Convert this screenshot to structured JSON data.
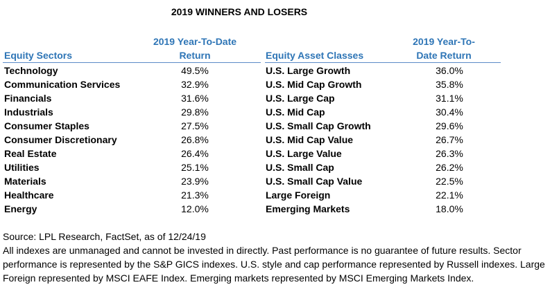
{
  "title": "2019 WINNERS AND LOSERS",
  "sectors": {
    "col1_header": "Equity Sectors",
    "col2_header_line1": "2019 Year-To-Date",
    "col2_header_line2": "Return",
    "rows": [
      {
        "name": "Technology",
        "value": "49.5%"
      },
      {
        "name": "Communication Services",
        "value": "32.9%"
      },
      {
        "name": "Financials",
        "value": "31.6%"
      },
      {
        "name": "Industrials",
        "value": "29.8%"
      },
      {
        "name": "Consumer Staples",
        "value": "27.5%"
      },
      {
        "name": "Consumer Discretionary",
        "value": "26.8%"
      },
      {
        "name": "Real Estate",
        "value": "26.4%"
      },
      {
        "name": "Utilities",
        "value": "25.1%"
      },
      {
        "name": "Materials",
        "value": "23.9%"
      },
      {
        "name": "Healthcare",
        "value": "21.3%"
      },
      {
        "name": "Energy",
        "value": "12.0%"
      }
    ]
  },
  "asset_classes": {
    "col1_header": "Equity Asset Classes",
    "col2_header_line1": "2019 Year-To-",
    "col2_header_line2": "Date Return",
    "rows": [
      {
        "name": "U.S. Large Growth",
        "value": "36.0%"
      },
      {
        "name": "U.S. Mid Cap Growth",
        "value": "35.8%"
      },
      {
        "name": "U.S. Large Cap",
        "value": "31.1%"
      },
      {
        "name": "U.S. Mid Cap",
        "value": "30.4%"
      },
      {
        "name": "U.S. Small Cap Growth",
        "value": "29.6%"
      },
      {
        "name": "U.S. Mid Cap Value",
        "value": "26.7%"
      },
      {
        "name": "U.S. Large Value",
        "value": "26.3%"
      },
      {
        "name": "U.S. Small Cap",
        "value": "26.2%"
      },
      {
        "name": "U.S. Small Cap Value",
        "value": "22.5%"
      },
      {
        "name": "Large Foreign",
        "value": "22.1%"
      },
      {
        "name": "Emerging Markets",
        "value": "18.0%"
      }
    ]
  },
  "footer": {
    "source": "Source: LPL Research, FactSet, as of 12/24/19",
    "disclaimer": "All indexes are unmanaged and cannot be invested in directly. Past performance is no guarantee of future results. Sector performance is represented by the S&P GICS indexes. U.S. style and cap performance represented by Russell indexes. Large Foreign represented by MSCI EAFE Index. Emerging markets represented by MSCI Emerging Markets Index."
  }
}
